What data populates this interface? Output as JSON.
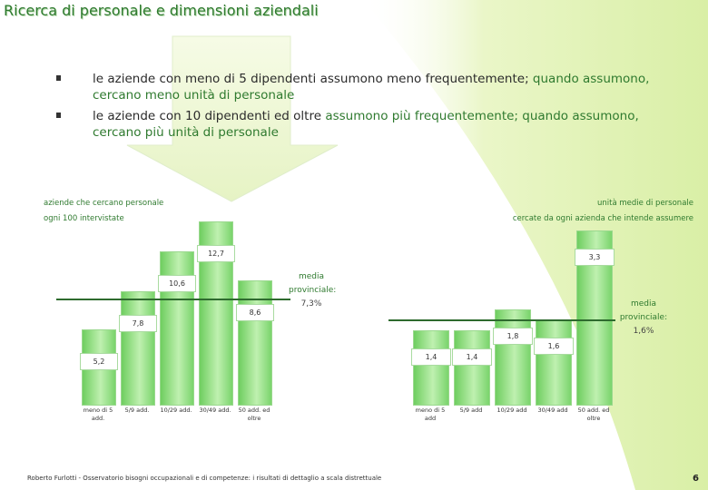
{
  "title": "Ricerca di personale e dimensioni aziendali",
  "bullets": [
    {
      "normal": "le aziende con meno di 5 dipendenti assumono meno frequentemente; ",
      "highlight": "quando assumono, cercano meno unità di personale"
    },
    {
      "normal": "le aziende con 10 dipendenti ed oltre ",
      "highlight": "assumono più frequentemente; quando assumono, cercano più unità di personale"
    }
  ],
  "left_chart": {
    "title_lines": [
      "aziende che cercano personale",
      "ogni 100 intervistate"
    ],
    "average": {
      "line1": "media",
      "line2": "provinciale:",
      "value": "7,3%"
    }
  },
  "right_chart": {
    "title_lines": [
      "unità medie di personale",
      "cercate da ogni azienda che intende assumere"
    ],
    "average": {
      "line1": "media",
      "line2": "provinciale:",
      "value": "1,6%"
    }
  },
  "chart_data": [
    {
      "type": "bar",
      "title": "aziende che cercano personale ogni 100 intervistate",
      "categories": [
        "meno di 5 add.",
        "5/9 add.",
        "10/29 add.",
        "30/49 add.",
        "50 add. ed oltre"
      ],
      "values": [
        5.2,
        7.8,
        10.6,
        12.7,
        8.6
      ],
      "labels": [
        "5,2",
        "7,8",
        "10,6",
        "12,7",
        "8,6"
      ],
      "reference_line": 7.3,
      "ylim": [
        0,
        14
      ]
    },
    {
      "type": "bar",
      "title": "unità medie di personale cercate da ogni azienda che intende assumere",
      "categories": [
        "meno di 5 add",
        "5/9 add",
        "10/29 add",
        "30/49 add",
        "50 add. ed oltre"
      ],
      "values": [
        1.4,
        1.4,
        1.8,
        1.6,
        3.3
      ],
      "labels": [
        "1,4",
        "1,4",
        "1,8",
        "1,6",
        "3,3"
      ],
      "reference_line": 1.6,
      "ylim": [
        0,
        3.8
      ]
    }
  ],
  "footer": "Roberto Furlotti - Osservatorio bisogni occupazionali e di competenze: i risultati di dettaglio a scala distrettuale",
  "page_number": "6"
}
